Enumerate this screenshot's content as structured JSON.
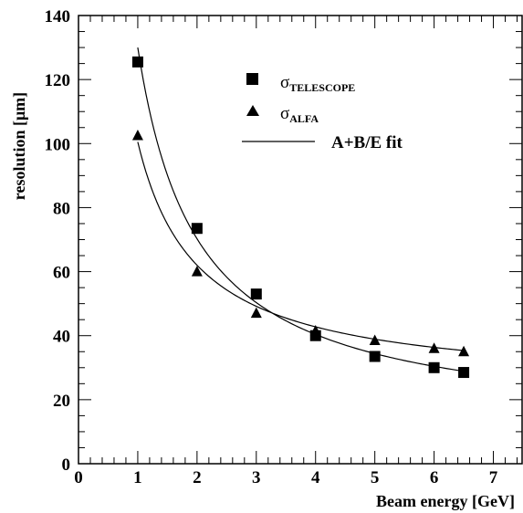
{
  "chart_data": {
    "type": "scatter",
    "xlabel": "Beam energy [GeV]",
    "ylabel": "resolution [μm]",
    "xlim": [
      0,
      7.5
    ],
    "ylim": [
      0,
      140
    ],
    "x_ticks": [
      0,
      1,
      2,
      3,
      4,
      5,
      6,
      7
    ],
    "y_ticks": [
      0,
      20,
      40,
      60,
      80,
      100,
      120,
      140
    ],
    "x_tick_labels": [
      "0",
      "1",
      "2",
      "3",
      "4",
      "5",
      "6",
      "7"
    ],
    "y_tick_labels": [
      "0",
      "20",
      "40",
      "60",
      "80",
      "100",
      "120",
      "140"
    ],
    "grid": false,
    "legend_position": "top-right",
    "series": [
      {
        "name": "σTELESCOPE",
        "legend_symbol": "σ",
        "legend_subscript": "TELESCOPE",
        "marker": "square",
        "x": [
          1,
          2,
          3,
          4,
          5,
          6,
          6.5
        ],
        "y": [
          125.5,
          73.5,
          53,
          40,
          33.5,
          30,
          28.5
        ],
        "fit": {
          "A": 10.5,
          "B": 119.5,
          "x_range": [
            1,
            6.5
          ]
        }
      },
      {
        "name": "σALFA",
        "legend_symbol": "σ",
        "legend_subscript": "ALFA",
        "marker": "triangle",
        "x": [
          1,
          2,
          3,
          4,
          5,
          6,
          6.5
        ],
        "y": [
          102.5,
          60,
          47,
          41.5,
          38.5,
          36,
          35
        ],
        "fit": {
          "A": 23.5,
          "B": 77.0,
          "x_range": [
            1,
            6.5
          ]
        }
      }
    ],
    "fit_label": "A+B/E fit"
  }
}
